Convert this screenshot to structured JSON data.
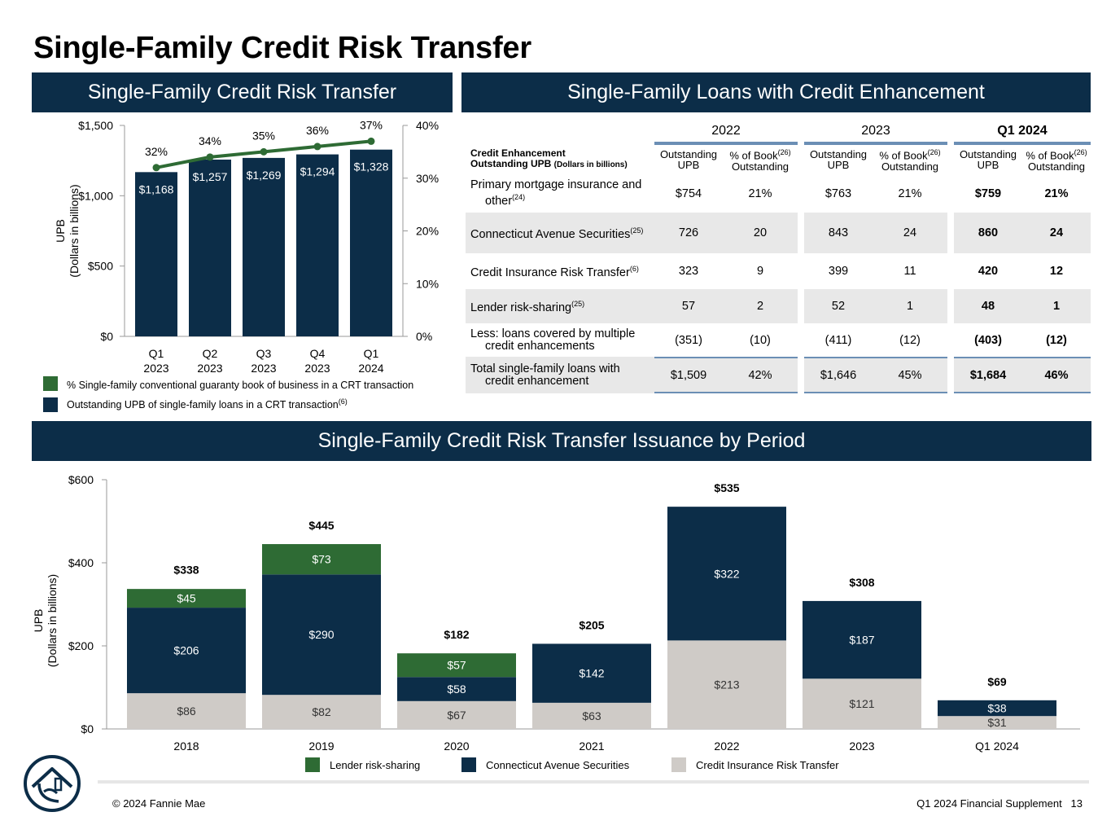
{
  "page": {
    "title": "Single-Family Credit Risk Transfer",
    "footer_left": "© 2024 Fannie Mae",
    "footer_right": "Q1 2024 Financial Supplement",
    "page_number": "13",
    "logo": "house-logo-icon"
  },
  "banners": {
    "crt": "Single-Family Credit Risk Transfer",
    "enhancement": "Single-Family Loans with Credit Enhancement",
    "issuance": "Single-Family Credit Risk Transfer Issuance by Period"
  },
  "colors": {
    "navy": "#0c2d48",
    "green": "#2e6b34",
    "gray": "#cfcbc7"
  },
  "table": {
    "years": [
      "2022",
      "2023",
      "Q1 2024"
    ],
    "header_label_1": "Credit Enhancement",
    "header_label_2": "Outstanding UPB",
    "header_label_unit": "(Dollars in billions)",
    "col_upb_1": "Outstanding",
    "col_upb_2": "UPB",
    "col_pct_1": "% of Book",
    "col_pct_sup": "(26)",
    "col_pct_2": "Outstanding",
    "rows": [
      {
        "label": "Primary mortgage insurance and",
        "label2": "other",
        "sup": "(24)",
        "values": [
          "$754",
          "21%",
          "$763",
          "21%",
          "$759",
          "21%"
        ]
      },
      {
        "label": "Connecticut Avenue Securities",
        "sup": "(25)",
        "values": [
          "726",
          "20",
          "843",
          "24",
          "860",
          "24"
        ]
      },
      {
        "label": "Credit Insurance Risk Transfer",
        "sup": "(6)",
        "values": [
          "323",
          "9",
          "399",
          "11",
          "420",
          "12"
        ]
      },
      {
        "label": "Lender risk-sharing",
        "sup": "(25)",
        "values": [
          "57",
          "2",
          "52",
          "1",
          "48",
          "1"
        ]
      },
      {
        "label": "Less: loans covered by multiple",
        "label2": "credit enhancements",
        "values": [
          "(351)",
          "(10)",
          "(411)",
          "(12)",
          "(403)",
          "(12)"
        ]
      },
      {
        "label": "Total single-family loans with",
        "label2": "credit enhancement",
        "values": [
          "$1,509",
          "42%",
          "$1,646",
          "45%",
          "$1,684",
          "46%"
        ]
      }
    ]
  },
  "chart_data": [
    {
      "type": "bar",
      "categories": [
        "Q1\n2023",
        "Q2\n2023",
        "Q3\n2023",
        "Q4\n2023",
        "Q1\n2024"
      ],
      "series": [
        {
          "name": "Outstanding UPB of single-family loans in a CRT transaction",
          "name_sup": "(6)",
          "values": [
            1168,
            1257,
            1269,
            1294,
            1328
          ],
          "labels": [
            "$1,168",
            "$1,257",
            "$1,269",
            "$1,294",
            "$1,328"
          ],
          "color": "#0c2d48"
        },
        {
          "name": "% Single-family conventional guaranty book of business in a CRT transaction",
          "type": "line",
          "axis": "right",
          "values": [
            32,
            34,
            35,
            36,
            37
          ],
          "labels": [
            "32%",
            "34%",
            "35%",
            "36%",
            "37%"
          ],
          "color": "#2e6b34"
        }
      ],
      "ylabel": "UPB",
      "ylabel2": "(Dollars in billions)",
      "ylim": [
        0,
        1500
      ],
      "yticks": [
        "$0",
        "$500",
        "$1,000",
        "$1,500"
      ],
      "y2lim": [
        0,
        40
      ],
      "y2ticks": [
        "0%",
        "10%",
        "20%",
        "30%",
        "40%"
      ],
      "legend": "bottom-left"
    },
    {
      "type": "bar",
      "stacked": true,
      "categories": [
        "2018",
        "2019",
        "2020",
        "2021",
        "2022",
        "2023",
        "Q1 2024"
      ],
      "series": [
        {
          "name": "Credit Insurance Risk Transfer",
          "values": [
            86,
            82,
            67,
            63,
            213,
            121,
            31
          ],
          "color": "#cfcbc7"
        },
        {
          "name": "Connecticut Avenue Securities",
          "values": [
            206,
            290,
            58,
            142,
            322,
            187,
            38
          ],
          "color": "#0c2d48"
        },
        {
          "name": "Lender risk-sharing",
          "values": [
            45,
            73,
            57,
            null,
            null,
            null,
            null
          ],
          "color": "#2e6b34"
        }
      ],
      "totals": [
        "$338",
        "$445",
        "$182",
        "$205",
        "$535",
        "$308",
        "$69"
      ],
      "totals_values": [
        338,
        445,
        182,
        205,
        535,
        308,
        69
      ],
      "ylabel": "UPB",
      "ylabel2": "(Dollars in billions)",
      "ylim": [
        0,
        600
      ],
      "yticks": [
        "$0",
        "$200",
        "$400",
        "$600"
      ],
      "legend_order": [
        "Lender risk-sharing",
        "Connecticut Avenue Securities",
        "Credit Insurance Risk Transfer"
      ],
      "legend": "bottom-center"
    }
  ]
}
